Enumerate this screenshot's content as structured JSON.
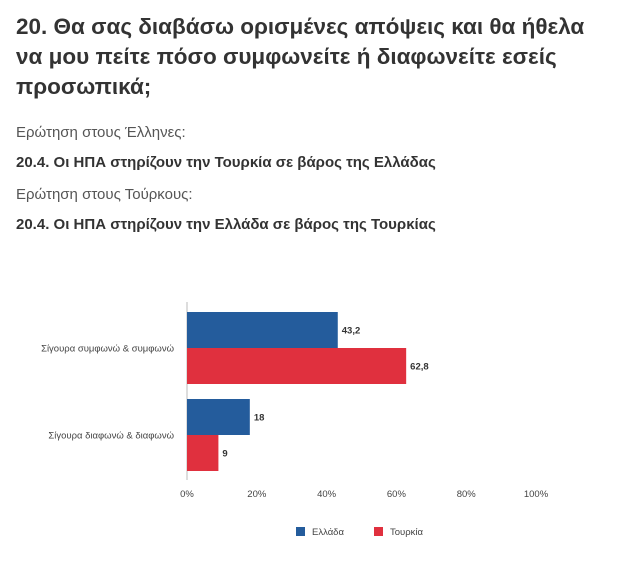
{
  "header": {
    "title": "20. Θα σας διαβάσω ορισμένες απόψεις και θα ήθελα να μου πείτε πόσο συμφωνείτε ή διαφωνείτε εσείς προσωπικά;",
    "greek_question_label": "Ερώτηση στους Έλληνες:",
    "greek_question_text": "20.4. Οι ΗΠΑ στηρίζουν την Τουρκία σε βάρος της Ελλάδας",
    "turkish_question_label": "Ερώτηση στους Τούρκους:",
    "turkish_question_text": "20.4. Οι ΗΠΑ στηρίζουν την Ελλάδα σε βάρος της Τουρκίας"
  },
  "colors": {
    "greece": "#245c9c",
    "turkey": "#e0303e",
    "axis": "#bbbbbb"
  },
  "chart_data": {
    "type": "bar",
    "orientation": "horizontal",
    "categories": [
      "Σίγουρα συμφωνώ & συμφωνώ",
      "Σίγουρα διαφωνώ & διαφωνώ"
    ],
    "series": [
      {
        "name": "Ελλάδα",
        "values": [
          43.2,
          18
        ],
        "labels": [
          "43,2",
          "18"
        ]
      },
      {
        "name": "Τουρκία",
        "values": [
          62.8,
          9
        ],
        "labels": [
          "62,8",
          "9"
        ]
      }
    ],
    "xlim": [
      0,
      100
    ],
    "xticks": [
      "0%",
      "20%",
      "40%",
      "60%",
      "80%",
      "100%"
    ],
    "grid": false,
    "legend_position": "bottom"
  }
}
